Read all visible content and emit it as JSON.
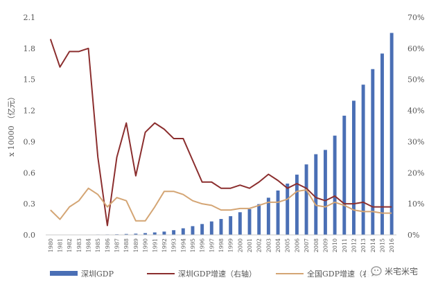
{
  "chart_data": {
    "type": "bar+line",
    "ylabel": "x 10000 （亿元）",
    "ylim": [
      0,
      2.1
    ],
    "yticks": [
      "0.0",
      "0.3",
      "0.6",
      "0.9",
      "1.2",
      "1.5",
      "1.8",
      "2.1"
    ],
    "y2lim": [
      0,
      70
    ],
    "y2ticks": [
      "0%",
      "10%",
      "20%",
      "30%",
      "40%",
      "50%",
      "60%",
      "70%"
    ],
    "categories": [
      "1980",
      "1981",
      "1982",
      "1983",
      "1984",
      "1985",
      "1986",
      "1987",
      "1988",
      "1989",
      "1990",
      "1991",
      "1992",
      "1993",
      "1994",
      "1995",
      "1996",
      "1997",
      "1998",
      "1999",
      "2000",
      "2001",
      "2002",
      "2003",
      "2004",
      "2005",
      "2006",
      "2007",
      "2008",
      "2009",
      "2010",
      "2011",
      "2012",
      "2013",
      "2014",
      "2015",
      "2016"
    ],
    "series": [
      {
        "name": "深圳GDP",
        "type": "bar",
        "axis": "left",
        "color": "#4a6fb5",
        "values": [
          0.00027,
          0.0005,
          0.0008,
          0.0013,
          0.0023,
          0.0039,
          0.0042,
          0.0056,
          0.0087,
          0.0116,
          0.0172,
          0.0237,
          0.0317,
          0.0453,
          0.0635,
          0.0842,
          0.1048,
          0.1297,
          0.1535,
          0.1804,
          0.2187,
          0.2482,
          0.2969,
          0.3586,
          0.4282,
          0.4951,
          0.5814,
          0.6802,
          0.7787,
          0.8201,
          0.9582,
          1.1506,
          1.295,
          1.45,
          1.6002,
          1.7503,
          1.9493
        ]
      },
      {
        "name": "深圳GDP增速（右轴）",
        "type": "line",
        "axis": "right",
        "color": "#8b2e2e",
        "values": [
          63,
          54,
          59,
          59,
          60,
          25,
          3,
          25,
          36,
          19,
          33,
          36,
          34,
          31,
          31,
          24,
          17,
          17,
          15,
          15,
          16,
          15,
          17,
          19.5,
          17.5,
          15,
          16.5,
          15,
          12,
          11,
          12.5,
          10,
          10,
          10.5,
          9,
          9,
          9
        ]
      },
      {
        "name": "全国GDP增速（右轴）",
        "type": "line",
        "axis": "right",
        "color": "#d4a574",
        "values": [
          8,
          5,
          9,
          11,
          15,
          13,
          9,
          12,
          11,
          4.5,
          4.5,
          9,
          14,
          14,
          13,
          11,
          10,
          9.5,
          8,
          8,
          8.5,
          8.5,
          9.5,
          10.5,
          10.5,
          11.5,
          14,
          14.5,
          9.5,
          9,
          10.5,
          9.5,
          8,
          7.5,
          7.5,
          7,
          7
        ]
      }
    ],
    "legend": [
      "深圳GDP",
      "深圳GDP增速（右轴）",
      "全国GDP增速（右轴）"
    ],
    "legend_placement": "bottom",
    "grid": false
  },
  "watermark": {
    "text": "米宅米宅",
    "icon": "wechat-bubble-icon"
  }
}
